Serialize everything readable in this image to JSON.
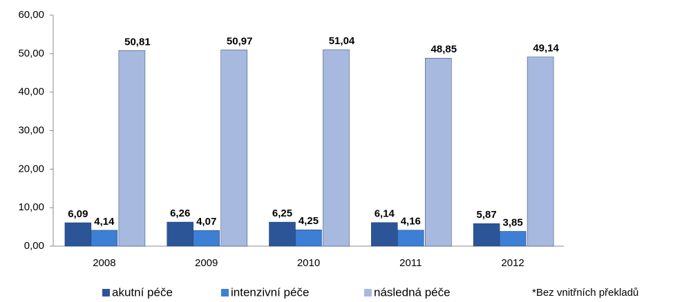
{
  "chart_data": {
    "type": "bar",
    "categories": [
      "2008",
      "2009",
      "2010",
      "2011",
      "2012"
    ],
    "series": [
      {
        "name": "akutní péče",
        "color": "#2b5596",
        "values": [
          6.09,
          6.26,
          6.25,
          6.14,
          5.87
        ],
        "value_labels": [
          "6,09",
          "6,26",
          "6,25",
          "6,14",
          "5,87"
        ]
      },
      {
        "name": "intenzivní péče",
        "color": "#3c7fd4",
        "values": [
          4.14,
          4.07,
          4.25,
          4.16,
          3.85
        ],
        "value_labels": [
          "4,14",
          "4,07",
          "4,25",
          "4,16",
          "3,85"
        ]
      },
      {
        "name": "následná péče",
        "color": "#a7b9df",
        "values": [
          50.81,
          50.97,
          51.04,
          48.85,
          49.14
        ],
        "value_labels": [
          "50,81",
          "50,97",
          "51,04",
          "48,85",
          "49,14"
        ]
      }
    ],
    "ylim": [
      0,
      60
    ],
    "yticks": [
      {
        "value": 0,
        "label": "0,00"
      },
      {
        "value": 10,
        "label": "10,00"
      },
      {
        "value": 20,
        "label": "20,00"
      },
      {
        "value": 30,
        "label": "30,00"
      },
      {
        "value": 40,
        "label": "40,00"
      },
      {
        "value": 50,
        "label": "50,00"
      },
      {
        "value": 60,
        "label": "60,00"
      }
    ],
    "grid": false,
    "legend": "bottom",
    "annotation": "*Bez vnitřních  překladů"
  }
}
